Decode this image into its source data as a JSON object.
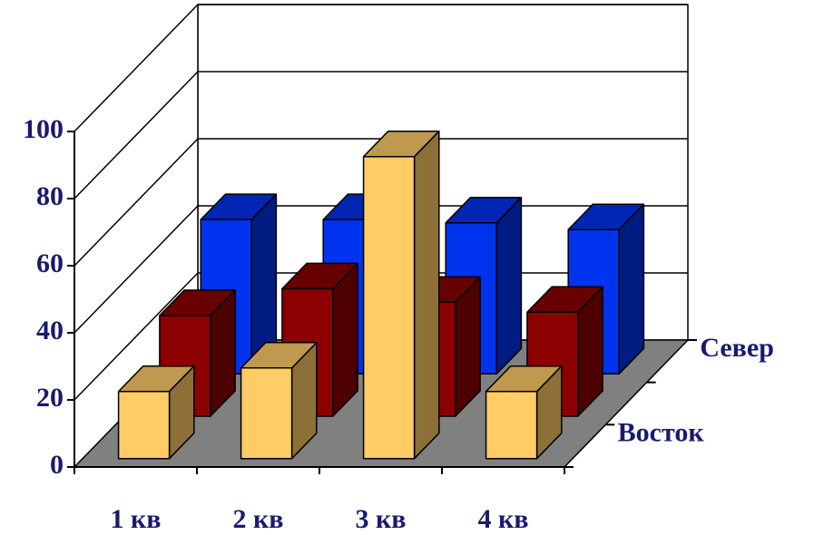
{
  "chart_data": {
    "type": "bar",
    "subtype": "3d-column-clustered-depth",
    "categories": [
      "1 кв",
      "2 кв",
      "3 кв",
      "4 кв"
    ],
    "series": [
      {
        "name": "Восток",
        "values": [
          20,
          27,
          90,
          20
        ],
        "color": "#ffcc66"
      },
      {
        "name": "",
        "values": [
          30,
          38,
          34,
          31
        ],
        "color": "#8b0000"
      },
      {
        "name": "Север",
        "values": [
          46,
          46,
          45,
          43
        ],
        "color": "#0033ee"
      }
    ],
    "y_ticks": [
      "0",
      "20",
      "40",
      "60",
      "80",
      "100"
    ],
    "ylim": [
      0,
      100
    ],
    "grid": true,
    "floor_color": "#808080"
  }
}
